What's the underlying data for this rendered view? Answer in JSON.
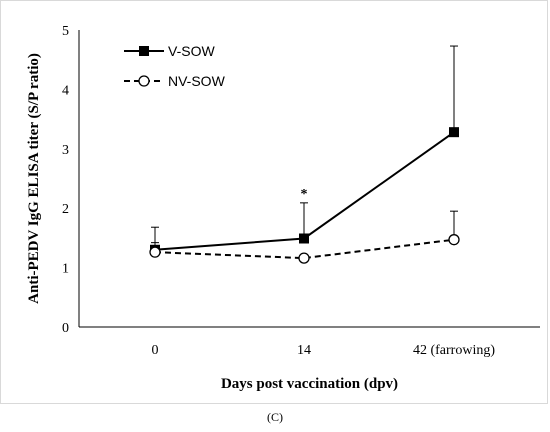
{
  "chart_data": {
    "type": "line",
    "categories": [
      "0",
      "14",
      "42 (farrowing)"
    ],
    "xlabel": "Days post vaccination (dpv)",
    "ylabel": "Anti-PEDV IgG ELISA titer (S/P ratio)",
    "ylim": [
      0,
      5
    ],
    "yticks": [
      "0",
      "1",
      "2",
      "3",
      "4",
      "5"
    ],
    "grid": false,
    "legend_position": "top-left",
    "series": [
      {
        "name": "V-SOW",
        "values": [
          1.3,
          1.49,
          3.28
        ],
        "error": [
          0.38,
          0.6,
          1.45
        ],
        "marker": "filled-square",
        "line": "solid",
        "color": "#000000"
      },
      {
        "name": "NV-SOW",
        "values": [
          1.26,
          1.16,
          1.47
        ],
        "error": [
          0.16,
          0.0,
          0.48
        ],
        "marker": "open-circle",
        "line": "dashed",
        "color": "#000000"
      }
    ],
    "annotations": [
      {
        "text": "*",
        "category": "14"
      }
    ]
  },
  "figure": {
    "panel_label": "(C)"
  }
}
